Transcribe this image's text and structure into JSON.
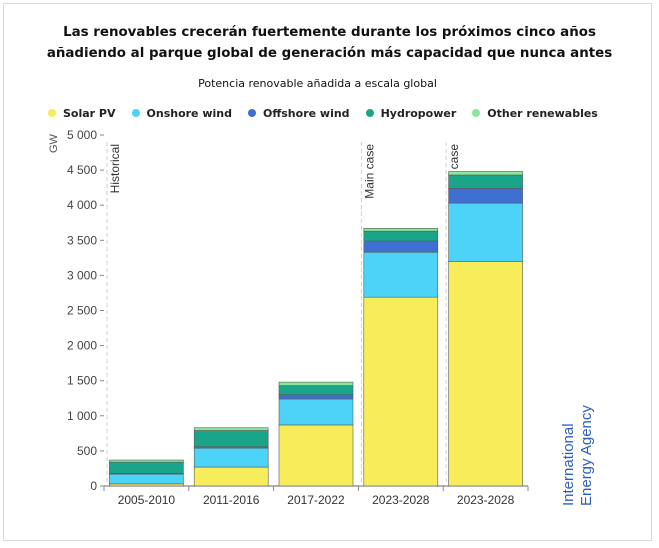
{
  "header": {
    "title_line1": "Las renovables crecerán fuertemente durante los próximos cinco años",
    "title_line2": "añadiendo al parque global de generación más capacidad que nunca antes",
    "subtitle": "Potencia renovable añadida a escala global"
  },
  "brand": {
    "line1": "International",
    "line2": "Energy Agency",
    "color": "#2b5fc6"
  },
  "chart_data": {
    "type": "bar",
    "stacked": true,
    "ylabel": "GW",
    "ylim": [
      0,
      5000
    ],
    "yticks": [
      0,
      500,
      1000,
      1500,
      2000,
      2500,
      3000,
      3500,
      4000,
      4500,
      5000
    ],
    "ytick_labels": [
      "0",
      "500",
      "1 000",
      "1 500",
      "2 000",
      "2 500",
      "3 000",
      "3 500",
      "4 000",
      "4 500",
      "5 000"
    ],
    "categories": [
      "2005-2010",
      "2011-2016",
      "2017-2022",
      "2023-2028",
      "2023-2028"
    ],
    "series": [
      {
        "name": "Solar PV",
        "color": "#f7ec5a",
        "values": [
          30,
          270,
          870,
          2690,
          3200
        ]
      },
      {
        "name": "Onshore wind",
        "color": "#4dd3f7",
        "values": [
          140,
          270,
          370,
          640,
          830
        ]
      },
      {
        "name": "Offshore wind",
        "color": "#3f6fd1",
        "values": [
          10,
          20,
          60,
          160,
          210
        ]
      },
      {
        "name": "Hydropower",
        "color": "#1aa58a",
        "values": [
          160,
          230,
          130,
          140,
          190
        ]
      },
      {
        "name": "Other renewables",
        "color": "#8ae69a",
        "values": [
          30,
          40,
          50,
          40,
          50
        ]
      }
    ],
    "legend_position": "top",
    "grid": false,
    "annotations": [
      {
        "text": "Historical",
        "before_category_index": 0
      },
      {
        "text": "Main case",
        "before_category_index": 3
      },
      {
        "text": "Accelerated case",
        "before_category_index": 4
      }
    ]
  }
}
